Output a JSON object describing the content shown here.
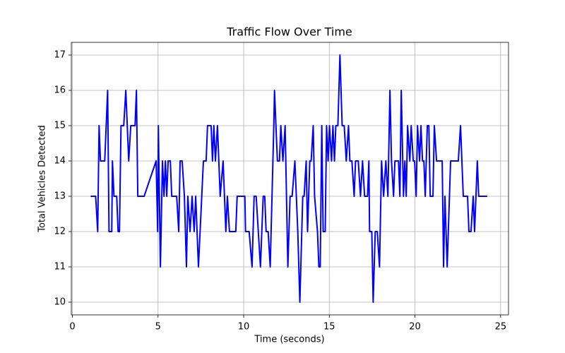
{
  "chart_data": {
    "type": "line",
    "title": "Traffic Flow Over Time",
    "x_label": "Time (seconds)",
    "y_label": "Total Vehicles Detected",
    "xlim": [
      -0.06,
      25.46
    ],
    "ylim": [
      9.64,
      17.36
    ],
    "xticks": [
      0,
      5,
      10,
      15,
      20,
      25
    ],
    "yticks": [
      10,
      11,
      12,
      13,
      14,
      15,
      16,
      17
    ],
    "grid": true,
    "x": [
      1.07,
      1.36,
      1.48,
      1.56,
      1.64,
      1.89,
      2.06,
      2.14,
      2.3,
      2.34,
      2.43,
      2.59,
      2.67,
      2.75,
      2.84,
      3.0,
      3.12,
      3.29,
      3.41,
      3.66,
      3.74,
      3.82,
      4.19,
      4.89,
      4.98,
      5.02,
      5.14,
      5.26,
      5.35,
      5.43,
      5.51,
      5.59,
      5.72,
      5.8,
      6.09,
      6.21,
      6.29,
      6.41,
      6.54,
      6.66,
      6.74,
      6.87,
      6.99,
      7.11,
      7.2,
      7.36,
      7.65,
      7.81,
      7.89,
      8.1,
      8.18,
      8.26,
      8.35,
      8.47,
      8.63,
      8.8,
      8.96,
      9.05,
      9.17,
      9.54,
      9.62,
      10.07,
      10.11,
      10.32,
      10.49,
      10.61,
      10.73,
      10.98,
      11.14,
      11.23,
      11.31,
      11.43,
      11.55,
      11.76,
      11.8,
      11.97,
      12.09,
      12.17,
      12.29,
      12.42,
      12.58,
      12.71,
      12.83,
      12.99,
      13.16,
      13.28,
      13.45,
      13.53,
      13.65,
      13.73,
      13.86,
      13.94,
      14.06,
      14.14,
      14.31,
      14.39,
      14.47,
      14.56,
      14.64,
      14.76,
      14.84,
      14.93,
      15.01,
      15.13,
      15.21,
      15.3,
      15.38,
      15.5,
      15.62,
      15.75,
      15.87,
      15.99,
      16.12,
      16.2,
      16.32,
      16.45,
      16.53,
      16.69,
      16.82,
      16.94,
      17.06,
      17.23,
      17.31,
      17.35,
      17.48,
      17.56,
      17.68,
      17.8,
      17.93,
      18.05,
      18.17,
      18.3,
      18.42,
      18.54,
      18.63,
      18.75,
      18.83,
      19.04,
      19.12,
      19.2,
      19.33,
      19.41,
      19.49,
      19.57,
      19.7,
      19.78,
      19.9,
      19.98,
      20.07,
      20.15,
      20.27,
      20.35,
      20.44,
      20.52,
      20.6,
      20.72,
      20.81,
      20.89,
      21.05,
      21.13,
      21.26,
      21.59,
      21.67,
      21.75,
      21.88,
      22.08,
      22.53,
      22.66,
      22.82,
      23.07,
      23.15,
      23.27,
      23.4,
      23.48,
      23.64,
      23.72,
      24.22
    ],
    "series": [
      {
        "name": "Total Vehicles Detected",
        "color": "#0000ff",
        "values": [
          13,
          13,
          12,
          15,
          14,
          14,
          16,
          12,
          12,
          14,
          13,
          13,
          12,
          12,
          15,
          15,
          16,
          14,
          15,
          15,
          16,
          13,
          13,
          14,
          12,
          15,
          11,
          14,
          13,
          14,
          13,
          14,
          14,
          13,
          13,
          12,
          14,
          14,
          13,
          11,
          13,
          12,
          13,
          12,
          13,
          11,
          14,
          14,
          15,
          15,
          14,
          15,
          14,
          15,
          13,
          14,
          12,
          13,
          12,
          12,
          13,
          13,
          12,
          12,
          11,
          13,
          13,
          11,
          13,
          13,
          12,
          12,
          11,
          15,
          16,
          14,
          14,
          15,
          14,
          15,
          11,
          13,
          13,
          14,
          12,
          10,
          13,
          13,
          14,
          12,
          14,
          14,
          15,
          13,
          12,
          11,
          11,
          15,
          12,
          12,
          15,
          14,
          15,
          14,
          15,
          14,
          15,
          15,
          17,
          15,
          15,
          14,
          15,
          14,
          14,
          13,
          14,
          14,
          13,
          14,
          13,
          13,
          14,
          12,
          12,
          10,
          12,
          12,
          11,
          14,
          13,
          14,
          13,
          16,
          14,
          13,
          14,
          14,
          13,
          16,
          13,
          14,
          13,
          15,
          14,
          15,
          14,
          14,
          13,
          15,
          14,
          15,
          14,
          14,
          13,
          15,
          15,
          13,
          13,
          15,
          14,
          14,
          11,
          13,
          11,
          14,
          14,
          15,
          13,
          13,
          12,
          12,
          13,
          12,
          14,
          13,
          13
        ]
      }
    ]
  }
}
